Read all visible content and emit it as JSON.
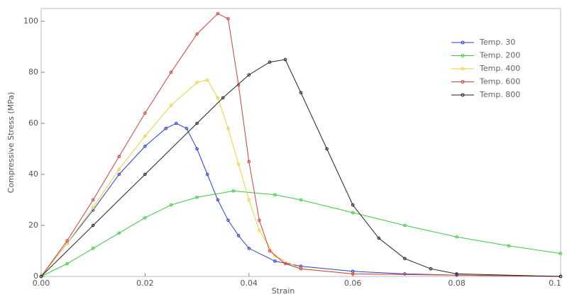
{
  "chart_data": {
    "type": "line",
    "x_label": "Strain",
    "y_label": "Compressive Stress (MPa)",
    "xlim": [
      0,
      0.1
    ],
    "ylim": [
      0,
      105
    ],
    "xticks": [
      {
        "value": 0,
        "label": "0.00"
      },
      {
        "value": 0.02,
        "label": "0.02"
      },
      {
        "value": 0.04,
        "label": "0.04"
      },
      {
        "value": 0.06,
        "label": "0.06"
      },
      {
        "value": 0.08,
        "label": "0.08"
      },
      0.1
    ],
    "yticks": [
      0,
      20,
      40,
      60,
      80,
      100
    ],
    "legend": "upper right",
    "series": [
      {
        "name": "Temp. 30",
        "color": "#2a3fc8",
        "x": [
          0,
          0.005,
          0.01,
          0.015,
          0.02,
          0.024,
          0.026,
          0.028,
          0.03,
          0.032,
          0.034,
          0.036,
          0.038,
          0.04,
          0.045,
          0.05,
          0.06,
          0.07,
          0.08,
          0.1
        ],
        "values": [
          0,
          13,
          26,
          40,
          51,
          58,
          60,
          58,
          50,
          40,
          30,
          22,
          16,
          11,
          6,
          4,
          2,
          1,
          0.5,
          0
        ]
      },
      {
        "name": "Temp. 200",
        "color": "#3cc83c",
        "x": [
          0,
          0.005,
          0.01,
          0.015,
          0.02,
          0.025,
          0.03,
          0.037,
          0.045,
          0.05,
          0.06,
          0.07,
          0.08,
          0.09,
          0.1
        ],
        "values": [
          0,
          5,
          11,
          17,
          23,
          28,
          31,
          33.5,
          32,
          30,
          25,
          20,
          15.5,
          12,
          9
        ]
      },
      {
        "name": "Temp. 400",
        "color": "#e6d23c",
        "x": [
          0,
          0.005,
          0.01,
          0.015,
          0.02,
          0.025,
          0.03,
          0.032,
          0.034,
          0.036,
          0.038,
          0.04,
          0.042,
          0.045,
          0.05,
          0.06,
          0.1
        ],
        "values": [
          0,
          13,
          27,
          42,
          55,
          67,
          76,
          77,
          70,
          58,
          44,
          30,
          18,
          8,
          3,
          1,
          0
        ]
      },
      {
        "name": "Temp. 600",
        "color": "#d23c3c",
        "x": [
          0,
          0.005,
          0.01,
          0.015,
          0.02,
          0.025,
          0.03,
          0.034,
          0.036,
          0.038,
          0.04,
          0.042,
          0.044,
          0.047,
          0.05,
          0.06,
          0.1
        ],
        "values": [
          0,
          14,
          30,
          47,
          64,
          80,
          95,
          103,
          101,
          75,
          45,
          22,
          10,
          5,
          3,
          1,
          0
        ]
      },
      {
        "name": "Temp. 800",
        "color": "#222222",
        "x": [
          0,
          0.01,
          0.02,
          0.03,
          0.035,
          0.04,
          0.044,
          0.047,
          0.05,
          0.055,
          0.06,
          0.065,
          0.07,
          0.075,
          0.08,
          0.1
        ],
        "values": [
          0,
          20,
          40,
          60,
          70,
          79,
          84,
          85,
          72,
          50,
          28,
          15,
          7,
          3,
          1,
          0
        ]
      }
    ]
  }
}
